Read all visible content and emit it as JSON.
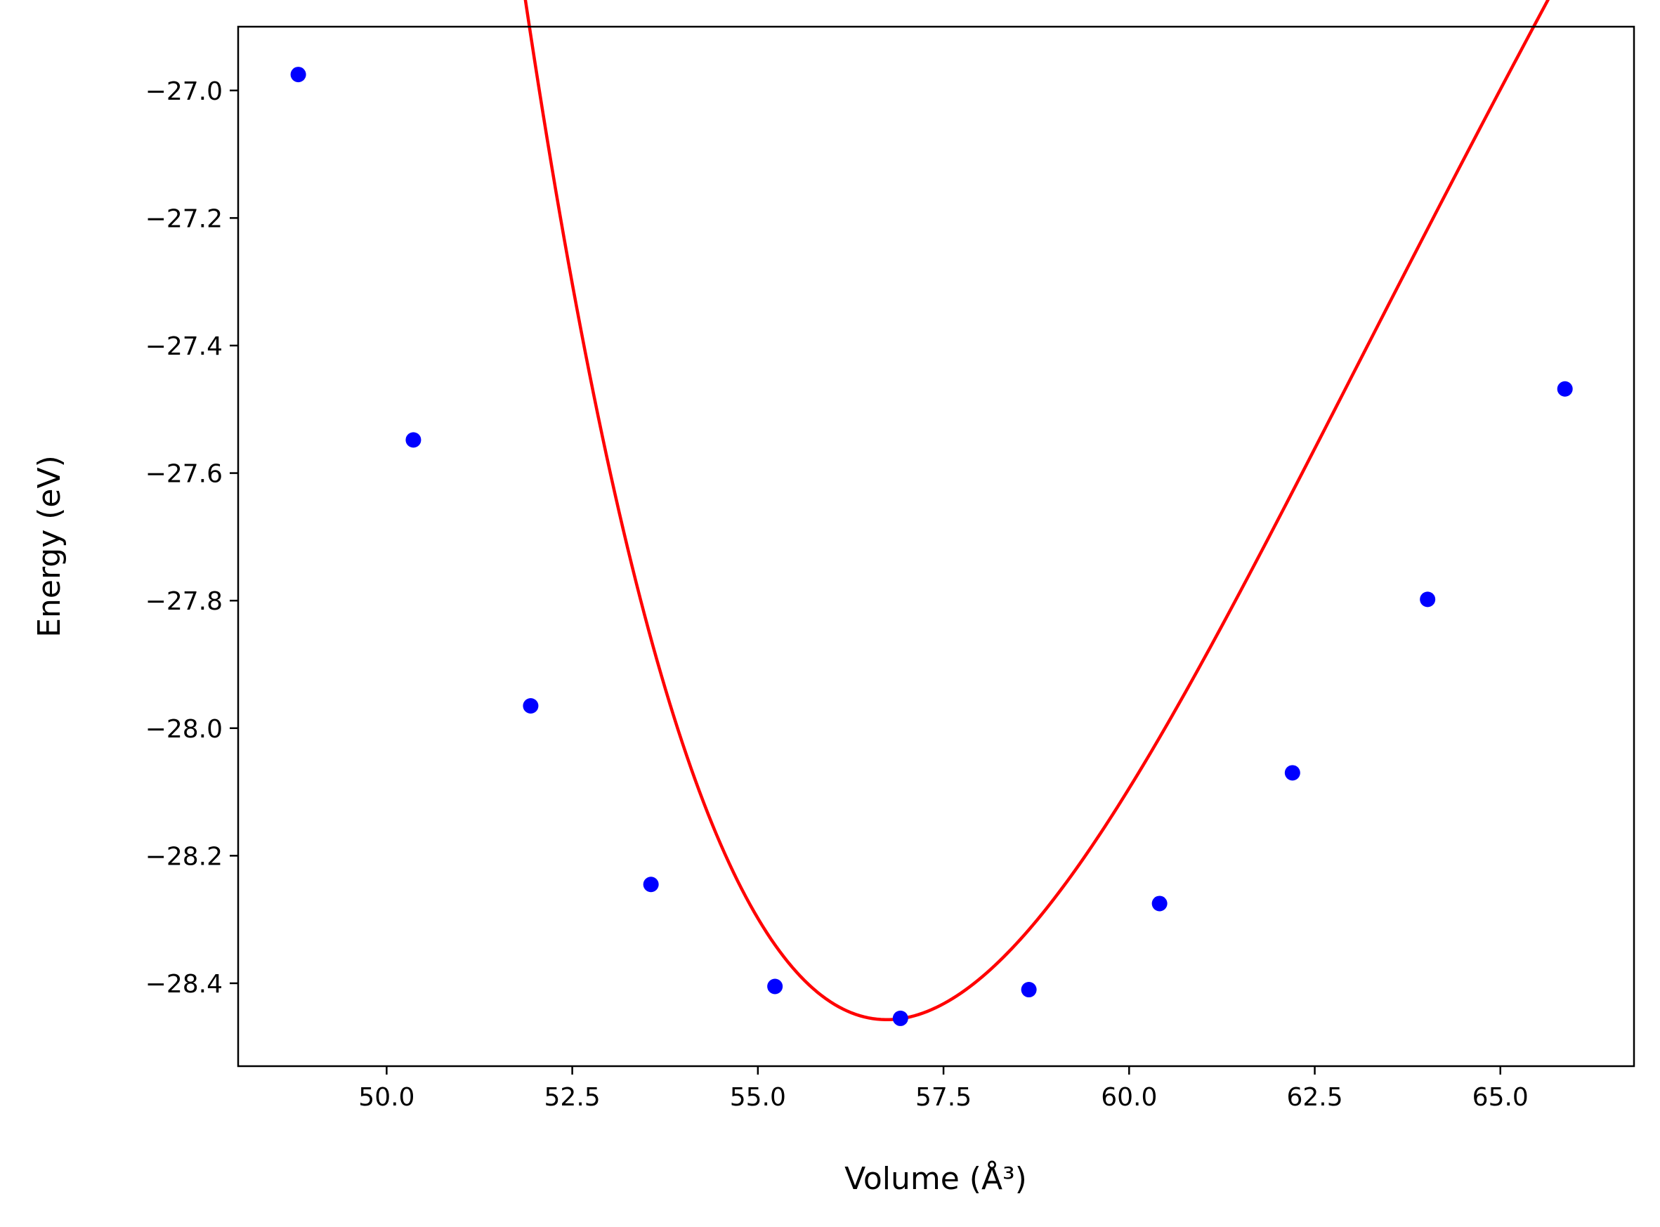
{
  "chart_data": {
    "type": "scatter",
    "xlabel": "Volume (Å³)",
    "ylabel": "Energy (eV)",
    "xlim": [
      48.0,
      66.8
    ],
    "ylim": [
      -28.53,
      -26.9
    ],
    "x_ticks": [
      "50.0",
      "52.5",
      "55.0",
      "57.5",
      "60.0",
      "62.5",
      "65.0"
    ],
    "y_ticks": [
      "−27.0",
      "−27.2",
      "−27.4",
      "−27.6",
      "−27.8",
      "−28.0",
      "−28.2",
      "−28.4"
    ],
    "grid": false,
    "series": [
      {
        "kind": "points",
        "color": "#0000ff",
        "x": [
          48.81,
          50.36,
          51.94,
          53.56,
          55.23,
          56.92,
          58.65,
          60.41,
          62.2,
          64.02,
          65.87
        ],
        "y": [
          -26.975,
          -27.548,
          -27.965,
          -28.245,
          -28.405,
          -28.455,
          -28.41,
          -28.275,
          -28.07,
          -27.798,
          -27.468
        ]
      },
      {
        "kind": "fit-curve",
        "color": "#ff0000",
        "fit": "quartic",
        "coefficients": [
          -28.457,
          0.004,
          0.04505,
          -0.0039,
          0.00012
        ],
        "center": 56.78,
        "x_range": [
          48.81,
          65.87
        ]
      }
    ]
  }
}
